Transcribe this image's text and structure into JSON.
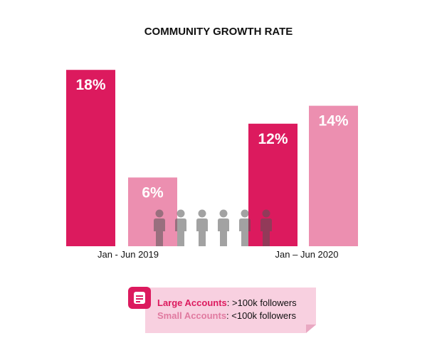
{
  "chart_data": {
    "type": "bar",
    "title": "COMMUNITY GROWTH RATE",
    "categories": [
      "Jan - Jun 2019",
      "Jan – Jun 2020"
    ],
    "series": [
      {
        "name": "Large Accounts",
        "values": [
          18,
          12
        ],
        "labels": [
          "18%",
          "12%"
        ],
        "color": "#dc1a5e"
      },
      {
        "name": "Small Accounts",
        "values": [
          6,
          14
        ],
        "labels": [
          "6%",
          "14%"
        ],
        "color": "#ec8fb0"
      }
    ],
    "xlabel": "",
    "ylabel": "",
    "grid": false
  },
  "legend": {
    "items": [
      {
        "name": "Large Accounts",
        "desc": ": >100k followers",
        "color": "#dc1a5e"
      },
      {
        "name": "Small Accounts",
        "desc": ": <100k followers",
        "color": "#e07aa0"
      }
    ],
    "icon": "note-icon"
  },
  "people_icons": 6
}
